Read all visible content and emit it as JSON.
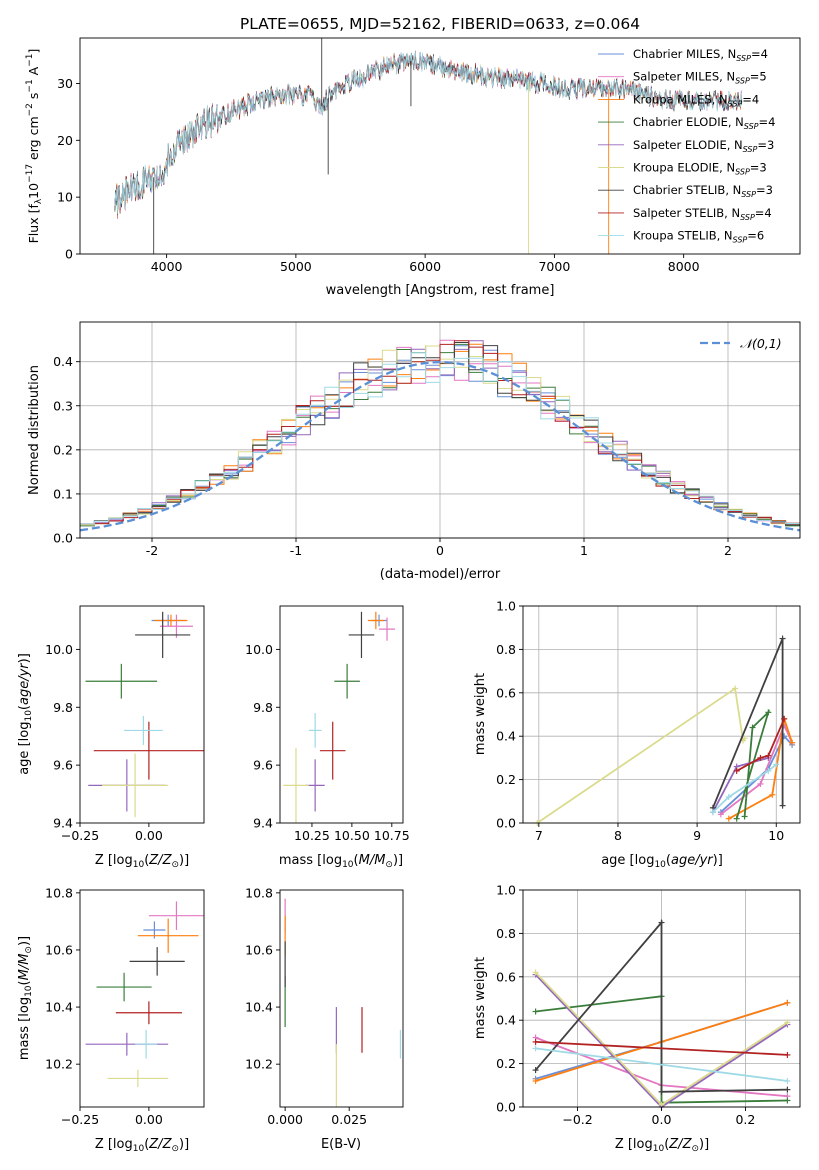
{
  "figure_title": "PLATE=0655, MJD=52162, FIBERID=0633, z=0.064",
  "colors": {
    "Chabrier MILES": "#6b8fd6",
    "Salpeter MILES": "#e377c2",
    "Kroupa MILES": "#ff7f0e",
    "Chabrier ELODIE": "#3a7d3a",
    "Salpeter ELODIE": "#9467bd",
    "Kroupa ELODIE": "#dbdb8d",
    "Chabrier STELIB": "#404040",
    "Salpeter STELIB": "#b22222",
    "Kroupa STELIB": "#9edae5",
    "normal_curve": "#5b8fd6"
  },
  "chart_data": [
    {
      "id": "spectrum",
      "type": "line",
      "xlabel": "wavelength [Angstrom, rest frame]",
      "ylabel": "Flux [f_λ10^-17 erg cm^-2 s^-1 A^-1]",
      "xlim": [
        3330,
        8900
      ],
      "ylim": [
        0,
        38
      ],
      "xticks": [
        4000,
        5000,
        6000,
        7000,
        8000
      ],
      "yticks": [
        0,
        10,
        20,
        30
      ],
      "legend": [
        "Chabrier MILES, N_SSP=4",
        "Salpeter MILES, N_SSP=5",
        "Kroupa MILES, N_SSP=4",
        "Chabrier ELODIE, N_SSP=4",
        "Salpeter ELODIE, N_SSP=3",
        "Kroupa ELODIE, N_SSP=3",
        "Chabrier STELIB, N_SSP=3",
        "Salpeter STELIB, N_SSP=4",
        "Kroupa STELIB, N_SSP=6"
      ],
      "legend_loc": "right",
      "continuum_x": [
        3600,
        3700,
        3850,
        3950,
        4100,
        4300,
        4500,
        4700,
        4900,
        5100,
        5200,
        5300,
        5500,
        5700,
        5900,
        6100,
        6300,
        6500,
        6700,
        6900,
        7100,
        7300,
        7500,
        7700,
        7900,
        8100,
        8300,
        8450
      ],
      "continuum_y": [
        9,
        11,
        13,
        14,
        20,
        23,
        25,
        27,
        28,
        28,
        26,
        29,
        31,
        33,
        34,
        33,
        32,
        31,
        31,
        30,
        29,
        29,
        29,
        28,
        27,
        27,
        27,
        27
      ],
      "features": [
        {
          "x": 3900,
          "y": 0
        },
        {
          "x": 5200,
          "y": 38
        },
        {
          "x": 5250,
          "y": 14
        },
        {
          "x": 5890,
          "y": 26
        },
        {
          "x": 6800,
          "y": 0
        },
        {
          "x": 7420,
          "y": 0
        }
      ]
    },
    {
      "id": "residuals",
      "type": "bar",
      "xlabel": "(data-model)/error",
      "ylabel": "Normed distribution",
      "xlim": [
        -2.5,
        2.5
      ],
      "ylim": [
        0,
        0.49
      ],
      "xticks": [
        -2,
        -1,
        0,
        1,
        2
      ],
      "yticks": [
        0.0,
        0.1,
        0.2,
        0.3,
        0.4
      ],
      "bin_width": 0.1,
      "legend": [
        "𝒩(0,1)"
      ],
      "legend_loc": "top-right",
      "grid": true
    },
    {
      "id": "age_vs_Z",
      "type": "scatter",
      "xlabel": "Z [log10(Z/Z⊙)]",
      "ylabel": "age [log10(age/yr)]",
      "xlim": [
        -0.25,
        0.2
      ],
      "ylim": [
        9.4,
        10.15
      ],
      "xticks": [
        -0.25,
        0.0
      ],
      "xticklabels": [
        "−0.25",
        "0.00"
      ],
      "yticks": [
        9.4,
        9.6,
        9.8,
        10.0
      ],
      "points": [
        {
          "m": "Chabrier MILES",
          "x": 0.07,
          "xe": 0.06,
          "y": 10.1,
          "ye": 0.02
        },
        {
          "m": "Salpeter MILES",
          "x": 0.1,
          "xe": 0.06,
          "y": 10.08,
          "ye": 0.04
        },
        {
          "m": "Kroupa MILES",
          "x": 0.08,
          "xe": 0.06,
          "y": 10.1,
          "ye": 0.02
        },
        {
          "m": "Chabrier ELODIE",
          "x": -0.1,
          "xe": 0.13,
          "y": 9.89,
          "ye": 0.06
        },
        {
          "m": "Salpeter ELODIE",
          "x": -0.08,
          "xe": 0.14,
          "y": 9.53,
          "ye": 0.09
        },
        {
          "m": "Kroupa ELODIE",
          "x": -0.05,
          "xe": 0.12,
          "y": 9.53,
          "ye": 0.11
        },
        {
          "m": "Chabrier STELIB",
          "x": 0.05,
          "xe": 0.1,
          "y": 10.05,
          "ye": 0.08
        },
        {
          "m": "Salpeter STELIB",
          "x": 0.0,
          "xe": 0.2,
          "y": 9.65,
          "ye": 0.1
        },
        {
          "m": "Kroupa STELIB",
          "x": -0.02,
          "xe": 0.07,
          "y": 9.72,
          "ye": 0.05
        }
      ]
    },
    {
      "id": "age_vs_mass",
      "type": "scatter",
      "xlabel": "mass [log10(M/M⊙)]",
      "ylabel": "",
      "xlim": [
        10.05,
        10.82
      ],
      "ylim": [
        9.4,
        10.15
      ],
      "xticks": [
        10.25,
        10.5,
        10.75
      ],
      "xticklabels": [
        "10.25",
        "10.50",
        "10.75"
      ],
      "yticks": [
        9.4,
        9.6,
        9.8,
        10.0
      ],
      "points": [
        {
          "m": "Chabrier MILES",
          "x": 10.67,
          "xe": 0.05,
          "y": 10.1,
          "ye": 0.02
        },
        {
          "m": "Salpeter MILES",
          "x": 10.72,
          "xe": 0.05,
          "y": 10.07,
          "ye": 0.04
        },
        {
          "m": "Kroupa MILES",
          "x": 10.65,
          "xe": 0.05,
          "y": 10.1,
          "ye": 0.03
        },
        {
          "m": "Chabrier ELODIE",
          "x": 10.47,
          "xe": 0.08,
          "y": 9.89,
          "ye": 0.06
        },
        {
          "m": "Salpeter ELODIE",
          "x": 10.27,
          "xe": 0.06,
          "y": 9.53,
          "ye": 0.09
        },
        {
          "m": "Kroupa ELODIE",
          "x": 10.15,
          "xe": 0.08,
          "y": 9.53,
          "ye": 0.13
        },
        {
          "m": "Chabrier STELIB",
          "x": 10.56,
          "xe": 0.08,
          "y": 10.05,
          "ye": 0.08
        },
        {
          "m": "Salpeter STELIB",
          "x": 10.38,
          "xe": 0.08,
          "y": 9.65,
          "ye": 0.1
        },
        {
          "m": "Kroupa STELIB",
          "x": 10.27,
          "xe": 0.04,
          "y": 9.72,
          "ye": 0.06
        }
      ]
    },
    {
      "id": "weight_vs_age",
      "type": "line",
      "xlabel": "age [log10(age/yr)]",
      "ylabel": "mass weight",
      "xlim": [
        6.8,
        10.3
      ],
      "ylim": [
        0,
        1.0
      ],
      "xticks": [
        7,
        8,
        9,
        10
      ],
      "yticks": [
        0.0,
        0.2,
        0.4,
        0.6,
        0.8,
        1.0
      ],
      "grid": true,
      "series": [
        {
          "m": "Chabrier MILES",
          "x": [
            9.3,
            9.9,
            10.1,
            10.2
          ],
          "y": [
            0.05,
            0.25,
            0.4,
            0.36
          ]
        },
        {
          "m": "Salpeter MILES",
          "x": [
            9.3,
            9.8,
            10.1,
            10.2
          ],
          "y": [
            0.04,
            0.18,
            0.45,
            0.37
          ]
        },
        {
          "m": "Kroupa MILES",
          "x": [
            9.4,
            9.95,
            10.1,
            10.2
          ],
          "y": [
            0.02,
            0.13,
            0.48,
            0.37
          ]
        },
        {
          "m": "Chabrier ELODIE",
          "x": [
            9.5,
            9.9,
            9.7,
            9.6
          ],
          "y": [
            0.02,
            0.51,
            0.44,
            0.03
          ]
        },
        {
          "m": "Salpeter ELODIE",
          "x": [
            9.2,
            9.5,
            9.9
          ],
          "y": [
            0.05,
            0.26,
            0.3
          ]
        },
        {
          "m": "Kroupa ELODIE",
          "x": [
            6.98,
            9.48,
            9.58,
            9.6
          ],
          "y": [
            0.0,
            0.62,
            0.38,
            0.39
          ]
        },
        {
          "m": "Chabrier STELIB",
          "x": [
            9.2,
            10.08,
            10.08
          ],
          "y": [
            0.07,
            0.85,
            0.08
          ]
        },
        {
          "m": "Salpeter STELIB",
          "x": [
            9.5,
            9.8,
            9.9,
            10.1
          ],
          "y": [
            0.24,
            0.3,
            0.31,
            0.48
          ]
        },
        {
          "m": "Kroupa STELIB",
          "x": [
            9.2,
            9.4,
            9.9,
            10.0
          ],
          "y": [
            0.05,
            0.12,
            0.24,
            0.27
          ]
        }
      ]
    },
    {
      "id": "mass_vs_Z",
      "type": "scatter",
      "xlabel": "Z [log10(Z/Z⊙)]",
      "ylabel": "mass [log10(M/M⊙)]",
      "xlim": [
        -0.25,
        0.2
      ],
      "ylim": [
        10.05,
        10.81
      ],
      "xticks": [
        -0.25,
        0.0
      ],
      "xticklabels": [
        "−0.25",
        "0.00"
      ],
      "yticks": [
        10.2,
        10.4,
        10.6,
        10.8
      ],
      "points": [
        {
          "m": "Chabrier MILES",
          "x": 0.02,
          "xe": 0.04,
          "y": 10.67,
          "ye": 0.03
        },
        {
          "m": "Salpeter MILES",
          "x": 0.1,
          "xe": 0.1,
          "y": 10.72,
          "ye": 0.05
        },
        {
          "m": "Kroupa MILES",
          "x": 0.07,
          "xe": 0.11,
          "y": 10.65,
          "ye": 0.06
        },
        {
          "m": "Chabrier ELODIE",
          "x": -0.09,
          "xe": 0.1,
          "y": 10.47,
          "ye": 0.05
        },
        {
          "m": "Salpeter ELODIE",
          "x": -0.08,
          "xe": 0.15,
          "y": 10.27,
          "ye": 0.04
        },
        {
          "m": "Kroupa ELODIE",
          "x": -0.04,
          "xe": 0.11,
          "y": 10.15,
          "ye": 0.03
        },
        {
          "m": "Chabrier STELIB",
          "x": 0.03,
          "xe": 0.1,
          "y": 10.56,
          "ye": 0.05
        },
        {
          "m": "Salpeter STELIB",
          "x": 0.0,
          "xe": 0.12,
          "y": 10.38,
          "ye": 0.04
        },
        {
          "m": "Kroupa STELIB",
          "x": -0.01,
          "xe": 0.04,
          "y": 10.27,
          "ye": 0.05
        }
      ]
    },
    {
      "id": "mass_vs_ebv",
      "type": "scatter",
      "xlabel": "E(B-V)",
      "ylabel": "",
      "xlim": [
        -0.002,
        0.046
      ],
      "ylim": [
        10.05,
        10.81
      ],
      "xticks": [
        0.0,
        0.025
      ],
      "xticklabels": [
        "0.000",
        "0.025"
      ],
      "yticks": [
        10.2,
        10.4,
        10.6,
        10.8
      ],
      "points": [
        {
          "m": "Salpeter MILES",
          "x": 0.0,
          "y": 10.72,
          "ye": 0.06
        },
        {
          "m": "Kroupa MILES",
          "x": 0.0,
          "y": 10.65,
          "ye": 0.07
        },
        {
          "m": "Chabrier ELODIE",
          "x": 0.0,
          "y": 10.42,
          "ye": 0.09
        },
        {
          "m": "Chabrier STELIB",
          "x": 0.0,
          "y": 10.55,
          "ye": 0.08
        },
        {
          "m": "Salpeter ELODIE",
          "x": 0.02,
          "y": 10.32,
          "ye": 0.08
        },
        {
          "m": "Kroupa ELODIE",
          "x": 0.02,
          "y": 10.16,
          "ye": 0.11
        },
        {
          "m": "Salpeter STELIB",
          "x": 0.03,
          "y": 10.32,
          "ye": 0.08
        },
        {
          "m": "Kroupa STELIB",
          "x": 0.045,
          "y": 10.27,
          "ye": 0.05
        }
      ]
    },
    {
      "id": "weight_vs_Z",
      "type": "line",
      "xlabel": "Z [log10(Z/Z⊙)]",
      "ylabel": "mass weight",
      "xlim": [
        -0.33,
        0.33
      ],
      "ylim": [
        0,
        1.0
      ],
      "xticks": [
        -0.2,
        0.0,
        0.2
      ],
      "xticklabels": [
        "−0.2",
        "0.0",
        "0.2"
      ],
      "yticks": [
        0.0,
        0.2,
        0.4,
        0.6,
        0.8,
        1.0
      ],
      "grid": true,
      "series": [
        {
          "m": "Chabrier MILES",
          "x": [
            -0.3,
            0.0,
            0.3
          ],
          "y": [
            0.13,
            0.3,
            0.48
          ]
        },
        {
          "m": "Salpeter MILES",
          "x": [
            -0.3,
            0.0,
            0.3
          ],
          "y": [
            0.32,
            0.1,
            0.05
          ]
        },
        {
          "m": "Kroupa MILES",
          "x": [
            -0.3,
            0.0,
            0.3
          ],
          "y": [
            0.12,
            0.3,
            0.48
          ]
        },
        {
          "m": "Chabrier ELODIE",
          "x": [
            -0.3,
            0.0,
            0.0,
            0.3
          ],
          "y": [
            0.44,
            0.51,
            0.02,
            0.03
          ]
        },
        {
          "m": "Salpeter ELODIE",
          "x": [
            -0.3,
            0.0,
            0.3
          ],
          "y": [
            0.61,
            0.0,
            0.38
          ]
        },
        {
          "m": "Kroupa ELODIE",
          "x": [
            -0.3,
            0.0,
            0.3
          ],
          "y": [
            0.62,
            0.01,
            0.39
          ]
        },
        {
          "m": "Chabrier STELIB",
          "x": [
            -0.3,
            0.0,
            0.0,
            0.3
          ],
          "y": [
            0.17,
            0.85,
            0.07,
            0.08
          ]
        },
        {
          "m": "Salpeter STELIB",
          "x": [
            -0.3,
            0.3
          ],
          "y": [
            0.3,
            0.24
          ]
        },
        {
          "m": "Kroupa STELIB",
          "x": [
            -0.3,
            0.3
          ],
          "y": [
            0.27,
            0.12
          ]
        }
      ]
    }
  ]
}
